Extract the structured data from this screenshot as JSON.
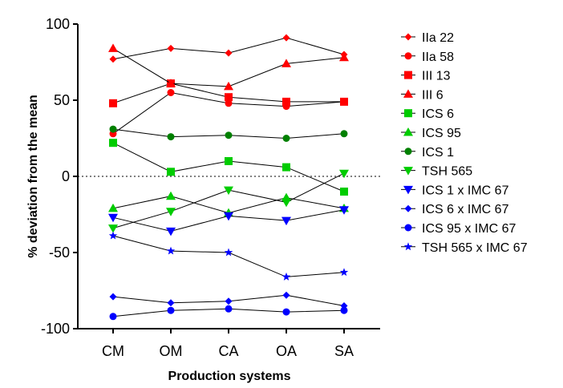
{
  "chart_data": {
    "type": "line",
    "title": "",
    "xlabel": "Production systems",
    "ylabel": "% deviation from the mean",
    "categories": [
      "CM",
      "OM",
      "CA",
      "OA",
      "SA"
    ],
    "ylim": [
      -100,
      100
    ],
    "yticks": [
      -100,
      -50,
      0,
      50,
      100
    ],
    "reference_line": 0,
    "grid": false,
    "legend_position": "right",
    "series": [
      {
        "name": "IIa 22",
        "color": "#ff0000",
        "marker": "diamond",
        "values": [
          77,
          84,
          81,
          91,
          80
        ]
      },
      {
        "name": "IIa 58",
        "color": "#ff0000",
        "marker": "circle",
        "values": [
          28,
          55,
          48,
          46,
          49
        ]
      },
      {
        "name": "III 13",
        "color": "#ff0000",
        "marker": "square",
        "values": [
          48,
          61,
          52,
          49,
          49
        ]
      },
      {
        "name": "III 6",
        "color": "#ff0000",
        "marker": "triangle-up",
        "values": [
          84,
          61,
          59,
          74,
          78
        ]
      },
      {
        "name": "ICS 6",
        "color": "#00cc00",
        "marker": "square",
        "values": [
          22,
          3,
          10,
          6,
          -10
        ]
      },
      {
        "name": "ICS 95",
        "color": "#00cc00",
        "marker": "triangle-up",
        "values": [
          -21,
          -13,
          -24,
          -14,
          -21
        ]
      },
      {
        "name": "ICS 1",
        "color": "#008000",
        "marker": "circle",
        "values": [
          31,
          26,
          27,
          25,
          28
        ]
      },
      {
        "name": "TSH 565",
        "color": "#00cc00",
        "marker": "triangle-down",
        "values": [
          -34,
          -23,
          -9,
          -17,
          2
        ]
      },
      {
        "name": "ICS 1 x IMC 67",
        "color": "#0000ff",
        "marker": "triangle-down",
        "values": [
          -27,
          -36,
          -26,
          -29,
          -22
        ]
      },
      {
        "name": "ICS 6 x IMC 67",
        "color": "#0000ff",
        "marker": "diamond",
        "values": [
          -79,
          -83,
          -82,
          -78,
          -85
        ]
      },
      {
        "name": "ICS 95 x IMC 67",
        "color": "#0000ff",
        "marker": "circle",
        "values": [
          -92,
          -88,
          -87,
          -89,
          -88
        ]
      },
      {
        "name": "TSH 565 x IMC 67",
        "color": "#0000ff",
        "marker": "star",
        "values": [
          -39,
          -49,
          -50,
          -66,
          -63
        ]
      }
    ]
  }
}
